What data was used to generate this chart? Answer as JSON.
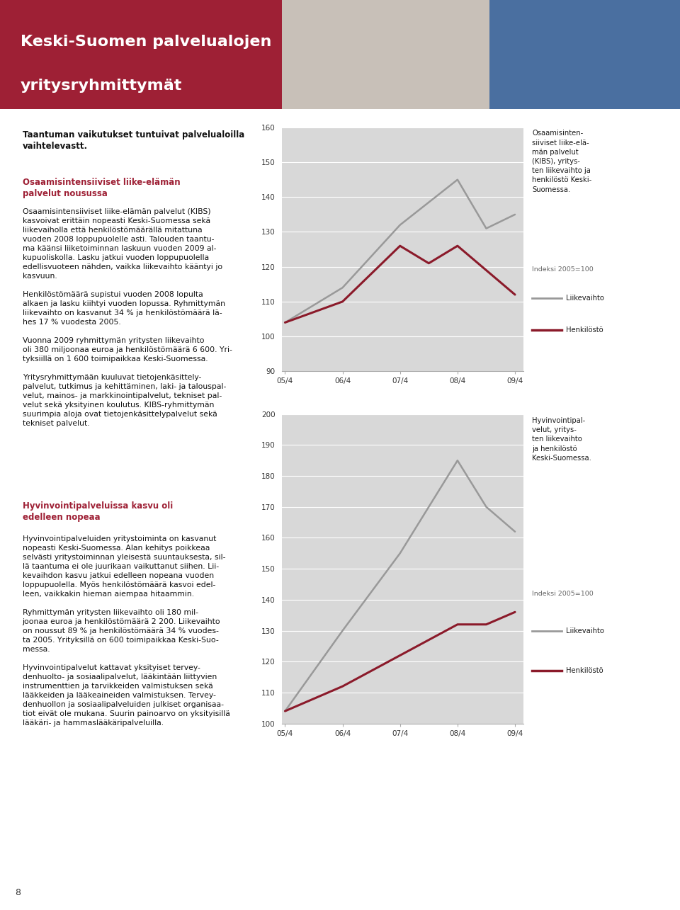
{
  "header_bg_color": "#9e2035",
  "header_title_line1": "Keski-Suomen palvelualojen",
  "header_title_line2": "yritysryhmittymät",
  "page_bg_color": "#ffffff",
  "chart_bg_color": "#d8d8d8",
  "chart1": {
    "title": "Osaamisinten-\nsiiviset liike-elä-\nmän palvelut\n(KIBS), yritys-\nten liikevaihto ja\nhenkilöstö Keski-\nSuomessa.",
    "subtitle": "Indeksi 2005=100",
    "xlabels": [
      "05/4",
      "06/4",
      "07/4",
      "08/4",
      "09/4"
    ],
    "ylim": [
      90,
      160
    ],
    "yticks": [
      90,
      100,
      110,
      120,
      130,
      140,
      150,
      160
    ],
    "liikevaihto_color": "#999999",
    "henkilosto_color": "#8b1a2a",
    "liikevaihto_x": [
      0,
      1,
      2,
      3,
      3.5,
      4
    ],
    "liikevaihto_y": [
      104,
      114,
      132,
      145,
      131,
      135
    ],
    "henkilosto_x": [
      0,
      1,
      2,
      2.5,
      3,
      3.5,
      4
    ],
    "henkilosto_y": [
      104,
      110,
      126,
      121,
      126,
      119,
      112
    ],
    "legend_liikevaihto": "Liikevaihto",
    "legend_henkilosto": "Henkilöstö"
  },
  "chart2": {
    "title": "Hyvinvointipal-\nvelut, yritys-\nten liikevaihto\nja henkilöstö\nKeski-Suomessa.",
    "subtitle": "Indeksi 2005=100",
    "xlabels": [
      "05/4",
      "06/4",
      "07/4",
      "08/4",
      "09/4"
    ],
    "ylim": [
      100,
      200
    ],
    "yticks": [
      100,
      110,
      120,
      130,
      140,
      150,
      160,
      170,
      180,
      190,
      200
    ],
    "liikevaihto_color": "#999999",
    "henkilosto_color": "#8b1a2a",
    "liikevaihto_x": [
      0,
      1,
      2,
      3,
      3.5,
      4
    ],
    "liikevaihto_y": [
      104,
      130,
      155,
      185,
      170,
      162
    ],
    "henkilosto_x": [
      0,
      1,
      2,
      3,
      3.5,
      4
    ],
    "henkilosto_y": [
      104,
      112,
      122,
      132,
      132,
      136
    ],
    "legend_liikevaihto": "Liikevaihto",
    "legend_henkilosto": "Henkilöstö"
  },
  "footer_page": "8"
}
